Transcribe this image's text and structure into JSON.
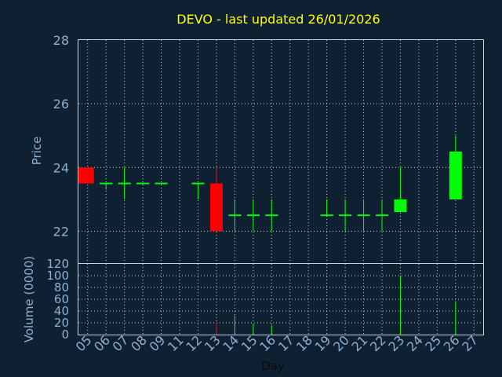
{
  "chart_data": [
    {
      "type": "candlestick",
      "title": "DEVO - last updated 26/01/2026",
      "ylabel": "Price",
      "ylim": [
        21,
        28
      ],
      "yticks": [
        22,
        24,
        26,
        28
      ],
      "colors": {
        "up": "#00ff00",
        "down": "#ff0000",
        "title": "#ffff00",
        "text": "#8fb0cf",
        "background": "#0f2033",
        "grid": "#c8d2dc"
      },
      "candles": [
        {
          "day": "05",
          "open": 24.0,
          "high": 24.0,
          "low": 23.5,
          "close": 23.5
        },
        {
          "day": "06",
          "open": 23.5,
          "high": 23.5,
          "low": 23.3,
          "close": 23.5
        },
        {
          "day": "07",
          "open": 23.5,
          "high": 24.0,
          "low": 23.0,
          "close": 23.5
        },
        {
          "day": "08",
          "open": 23.5,
          "high": 23.5,
          "low": 23.5,
          "close": 23.5
        },
        {
          "day": "09",
          "open": 23.5,
          "high": 23.5,
          "low": 23.5,
          "close": 23.5
        },
        {
          "day": "12",
          "open": 23.5,
          "high": 23.5,
          "low": 23.0,
          "close": 23.5
        },
        {
          "day": "13",
          "open": 23.5,
          "high": 24.0,
          "low": 22.0,
          "close": 22.0
        },
        {
          "day": "14",
          "open": 22.5,
          "high": 23.0,
          "low": 22.0,
          "close": 22.5
        },
        {
          "day": "15",
          "open": 22.5,
          "high": 23.0,
          "low": 22.0,
          "close": 22.5
        },
        {
          "day": "16",
          "open": 22.5,
          "high": 23.0,
          "low": 22.0,
          "close": 22.5
        },
        {
          "day": "19",
          "open": 22.5,
          "high": 23.0,
          "low": 22.5,
          "close": 22.5
        },
        {
          "day": "20",
          "open": 22.5,
          "high": 23.0,
          "low": 22.0,
          "close": 22.5
        },
        {
          "day": "21",
          "open": 22.5,
          "high": 23.0,
          "low": 22.0,
          "close": 22.5
        },
        {
          "day": "22",
          "open": 22.5,
          "high": 23.0,
          "low": 22.0,
          "close": 22.5
        },
        {
          "day": "23",
          "open": 22.6,
          "high": 24.0,
          "low": 22.6,
          "close": 23.0
        },
        {
          "day": "26",
          "open": 23.0,
          "high": 25.0,
          "low": 23.0,
          "close": 24.5
        }
      ]
    },
    {
      "type": "bar",
      "ylabel": "Volume (0000)",
      "xlabel": "Day",
      "ylim": [
        0,
        120
      ],
      "yticks": [
        0,
        20,
        40,
        60,
        80,
        100,
        120
      ],
      "categories": [
        "05",
        "06",
        "07",
        "08",
        "09",
        "11",
        "12",
        "13",
        "14",
        "15",
        "16",
        "17",
        "18",
        "19",
        "20",
        "21",
        "22",
        "23",
        "24",
        "25",
        "26",
        "27"
      ],
      "volumes": [
        {
          "day": "13",
          "value": 20,
          "color": "#ff0000"
        },
        {
          "day": "14",
          "value": 32,
          "color": "#00ff00"
        },
        {
          "day": "15",
          "value": 18,
          "color": "#00ff00"
        },
        {
          "day": "16",
          "value": 16,
          "color": "#00ff00"
        },
        {
          "day": "23",
          "value": 100,
          "color": "#00ff00"
        },
        {
          "day": "26",
          "value": 57,
          "color": "#00ff00"
        }
      ]
    }
  ]
}
